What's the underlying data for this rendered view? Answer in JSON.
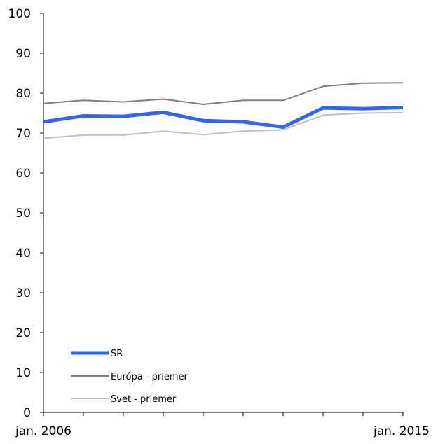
{
  "chart_data": {
    "type": "line",
    "title": "",
    "xlabel": "",
    "ylabel": "",
    "ylim": [
      0,
      100
    ],
    "yticks": [
      0,
      10,
      20,
      30,
      40,
      50,
      60,
      70,
      80,
      90,
      100
    ],
    "x_tick_labels": [
      "jan. 2006",
      "jan. 2015"
    ],
    "x_points": 10,
    "grid": false,
    "legend_position": "bottom-left",
    "series": [
      {
        "name": "SR",
        "color": "#3366ee",
        "values": [
          72.8,
          74.3,
          74.2,
          75.2,
          73.1,
          72.8,
          71.5,
          76.3,
          76.1,
          76.4
        ]
      },
      {
        "name": "Európa - priemer",
        "color": "#808080",
        "values": [
          77.4,
          78.2,
          77.8,
          78.5,
          77.2,
          78.2,
          78.2,
          81.7,
          82.5,
          82.6
        ]
      },
      {
        "name": "Svet - priemer",
        "color": "#c0c0c0",
        "values": [
          68.7,
          69.5,
          69.5,
          70.5,
          69.6,
          70.5,
          70.8,
          74.5,
          75.0,
          75.1
        ]
      }
    ]
  }
}
